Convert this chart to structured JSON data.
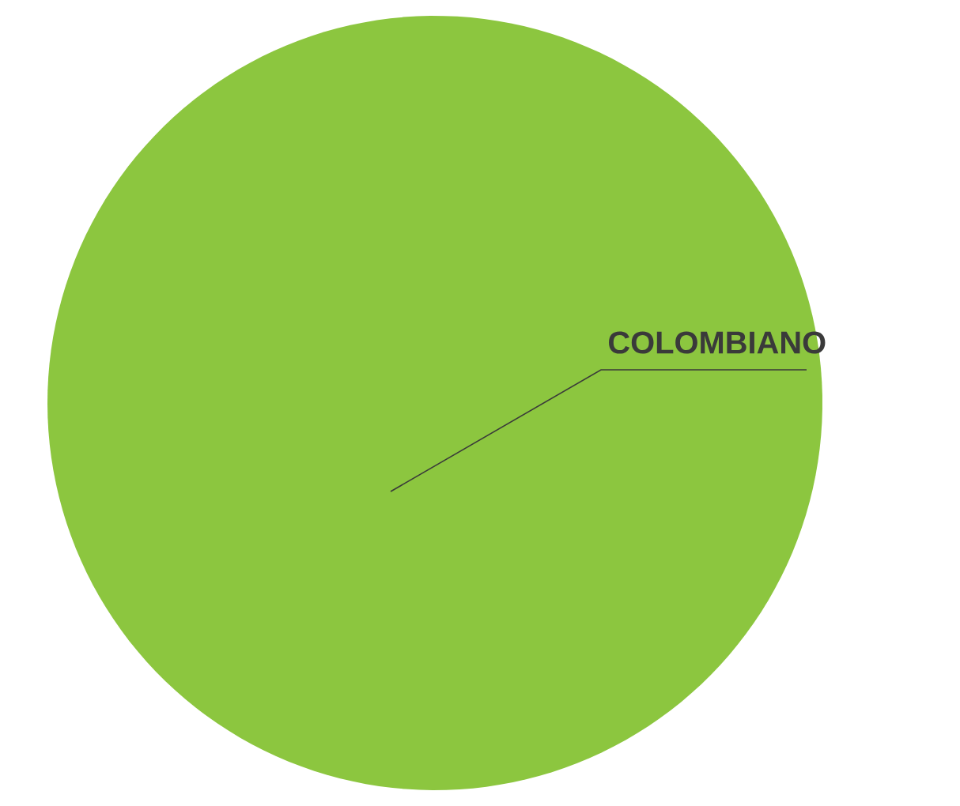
{
  "chart_data": {
    "type": "pie",
    "categories": [
      "COLOMBIANO"
    ],
    "values": [
      100
    ],
    "colors": [
      "#8cc63f"
    ]
  }
}
